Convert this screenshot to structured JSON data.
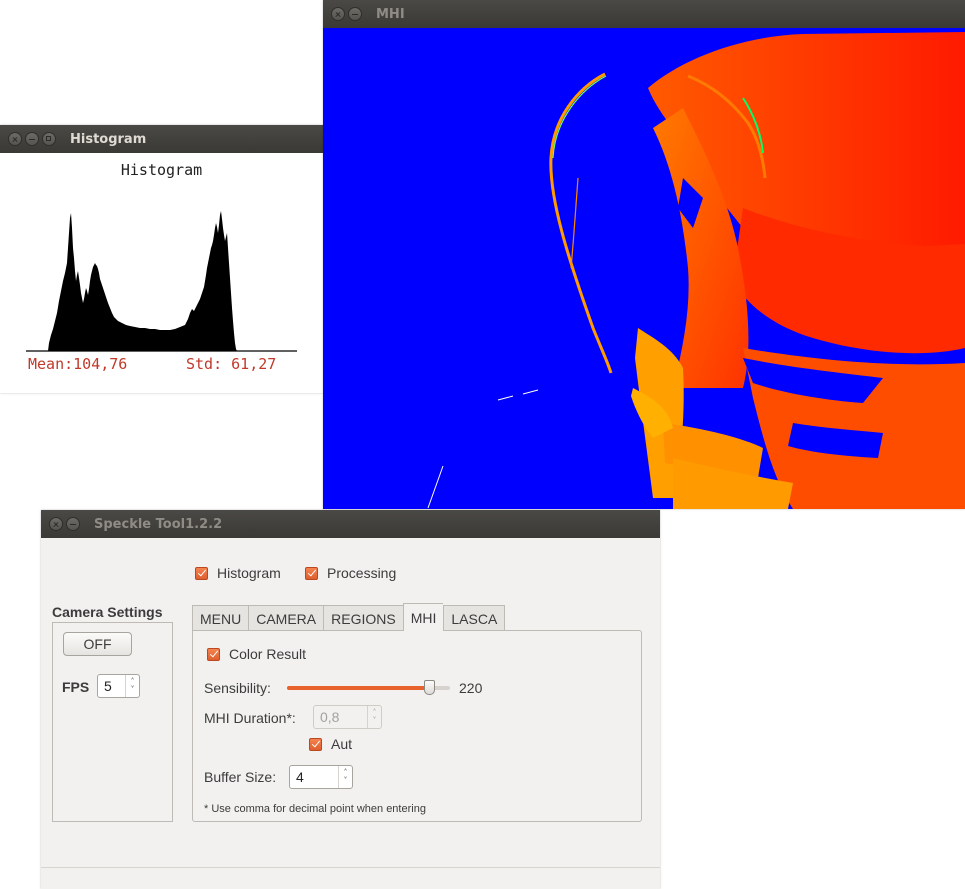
{
  "histogram_window": {
    "title": "Histogram",
    "chart_title": "Histogram",
    "mean_label": "Mean:104,76",
    "std_label": "Std: 61,27"
  },
  "mhi_window": {
    "title": "MHI"
  },
  "speckle_window": {
    "title": "Speckle Tool1.2.2",
    "histogram_checkbox": {
      "label": "Histogram",
      "checked": true
    },
    "processing_checkbox": {
      "label": "Processing",
      "checked": true
    },
    "camera_settings": {
      "heading": "Camera Settings",
      "toggle_label": "OFF",
      "fps_label": "FPS:",
      "fps_value": "5"
    },
    "tabs": [
      {
        "label": "MENU",
        "active": false
      },
      {
        "label": "CAMERA",
        "active": false
      },
      {
        "label": "REGIONS",
        "active": false
      },
      {
        "label": "MHI",
        "active": true
      },
      {
        "label": "LASCA",
        "active": false
      }
    ],
    "mhi_tab": {
      "color_result": {
        "label": "Color Result",
        "checked": true
      },
      "sensibility_label": "Sensibility:",
      "sensibility_value": "220",
      "sensibility_fraction": 0.87,
      "duration_label": "MHI Duration*:",
      "duration_value": "0,8",
      "duration_enabled": false,
      "auto_checkbox": {
        "label": "Aut",
        "checked": true
      },
      "buffer_label": "Buffer Size:",
      "buffer_value": "4",
      "footnote": "* Use comma for decimal point when entering"
    }
  },
  "colors": {
    "accent": "#e8622e",
    "mhi_background": "#0000ff",
    "stat_text": "#c0392b"
  }
}
